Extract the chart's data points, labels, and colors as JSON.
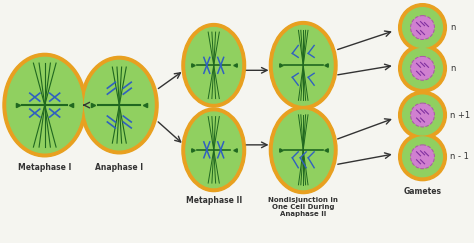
{
  "bg_color": "#f5f5f0",
  "cell_outer_color": "#e8a020",
  "cell_inner_color": "#90d060",
  "chromosome_color": "#3060c0",
  "spindle_color": "#206820",
  "nucleus_color": "#d080d0",
  "labels": {
    "metaphase1": "Metaphase I",
    "anaphase1": "Anaphase I",
    "metaphase2": "Metaphase II",
    "nondisjunction": "Nondisjunction in\nOne Cell During\nAnaphase II",
    "gametes": "Gametes",
    "n1": "n",
    "n2": "n",
    "n3": "n +1",
    "n4": "n - 1"
  },
  "label_fontsize": 5.5,
  "arrow_color": "#333333"
}
